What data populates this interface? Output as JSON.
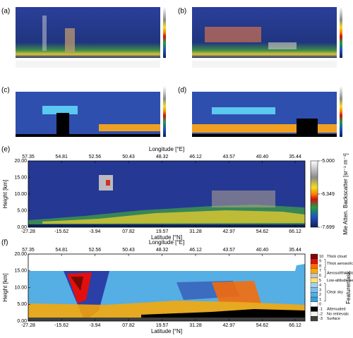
{
  "panel_labels": [
    "(a)",
    "(b)",
    "(c)",
    "(d)"
  ],
  "chart_data": [
    {
      "type": "heatmap",
      "label": "(e)",
      "xlabel": "Latitude [°N]",
      "x2label": "Longitude [°E]",
      "ylabel": "Height [km]",
      "xlim": [
        -27.28,
        66.12
      ],
      "xticks": [
        -27.28,
        -15.62,
        -3.94,
        {
          "value": 7.82,
          "label": "07.82"
        },
        19.57,
        31.28,
        42.97,
        54.62,
        66.12
      ],
      "x2ticks": [
        57.35,
        54.81,
        52.56,
        50.43,
        48.32,
        46.12,
        43.57,
        {
          "value": 40.4,
          "label": "40.40"
        },
        35.44
      ],
      "ylim": [
        0,
        20
      ],
      "yticks": [
        {
          "value": 0,
          "label": "0.00"
        },
        {
          "value": 5,
          "label": "5.00"
        },
        {
          "value": 10,
          "label": "10.00"
        },
        {
          "value": 15,
          "label": "15.00"
        },
        {
          "value": 20,
          "label": "20.00"
        }
      ],
      "colorbar": {
        "label": "Mie Atten. Backscatter [sr⁻¹ m⁻¹]",
        "lim": [
          -7.699,
          -5
        ],
        "ticks": [
          {
            "value": -5,
            "label": "-5.000"
          },
          -6.349,
          -7.699
        ]
      }
    },
    {
      "type": "heatmap",
      "label": "(f)",
      "xlabel": "Latitude [°N]",
      "x2label": "Longitude [°E]",
      "ylabel": "Height [km]",
      "xlim": [
        -27.28,
        66.12
      ],
      "xticks": [
        -27.28,
        -15.62,
        -3.94,
        {
          "value": 7.82,
          "label": "07.82"
        },
        19.57,
        31.28,
        42.97,
        54.62,
        66.12
      ],
      "x2ticks": [
        57.35,
        54.81,
        52.56,
        50.43,
        48.32,
        46.12,
        43.57,
        {
          "value": 40.4,
          "label": "40.40"
        },
        35.44
      ],
      "ylim": [
        0,
        20
      ],
      "yticks": [
        {
          "value": 0,
          "label": "0.00"
        },
        {
          "value": 5,
          "label": "5.00"
        },
        {
          "value": 10,
          "label": "10.00"
        },
        {
          "value": 15,
          "label": "15.00"
        },
        {
          "value": 20,
          "label": "20.00"
        }
      ],
      "colorbar": {
        "label": "Featuremask",
        "levels": [
          {
            "value": 10,
            "color": "#7a0a00"
          },
          {
            "value": 9,
            "color": "#e01010"
          },
          {
            "value": 8,
            "color": "#ff6a00"
          },
          {
            "value": 7,
            "color": "#ffa800"
          },
          {
            "value": 6,
            "color": "#c8c8c8"
          },
          {
            "value": 5,
            "color": "#ffe27a"
          },
          {
            "value": 4,
            "color": "#9fd3f0"
          },
          {
            "value": 3,
            "color": "#7cc0ea"
          },
          {
            "value": 2,
            "color": "#55aee4"
          },
          {
            "value": 1,
            "color": "#3a9ede"
          },
          {
            "value": 0,
            "color": "#ffffff"
          },
          {
            "value": -1,
            "color": "#000000"
          },
          {
            "value": -2,
            "color": "#f2f2f2"
          },
          {
            "value": -3,
            "color": "#404040"
          }
        ],
        "groups": [
          {
            "label": "Thick cloud",
            "span": [
              10,
              10
            ]
          },
          {
            "label": "Thick aerosol/cloud",
            "span": [
              9,
              8
            ]
          },
          {
            "label": "Aerosol/thin cloud",
            "span": [
              7,
              6
            ]
          },
          {
            "label": "Low-altitude aerosols",
            "span": [
              5,
              5
            ]
          },
          {
            "label": "Clear sky",
            "span": [
              4,
              1
            ]
          },
          {
            "label": "Attenuated",
            "span": [
              -1,
              -1
            ]
          },
          {
            "label": "No retrievals",
            "span": [
              -2,
              -2
            ]
          },
          {
            "label": "Surface",
            "span": [
              -3,
              -3
            ]
          }
        ]
      }
    }
  ]
}
